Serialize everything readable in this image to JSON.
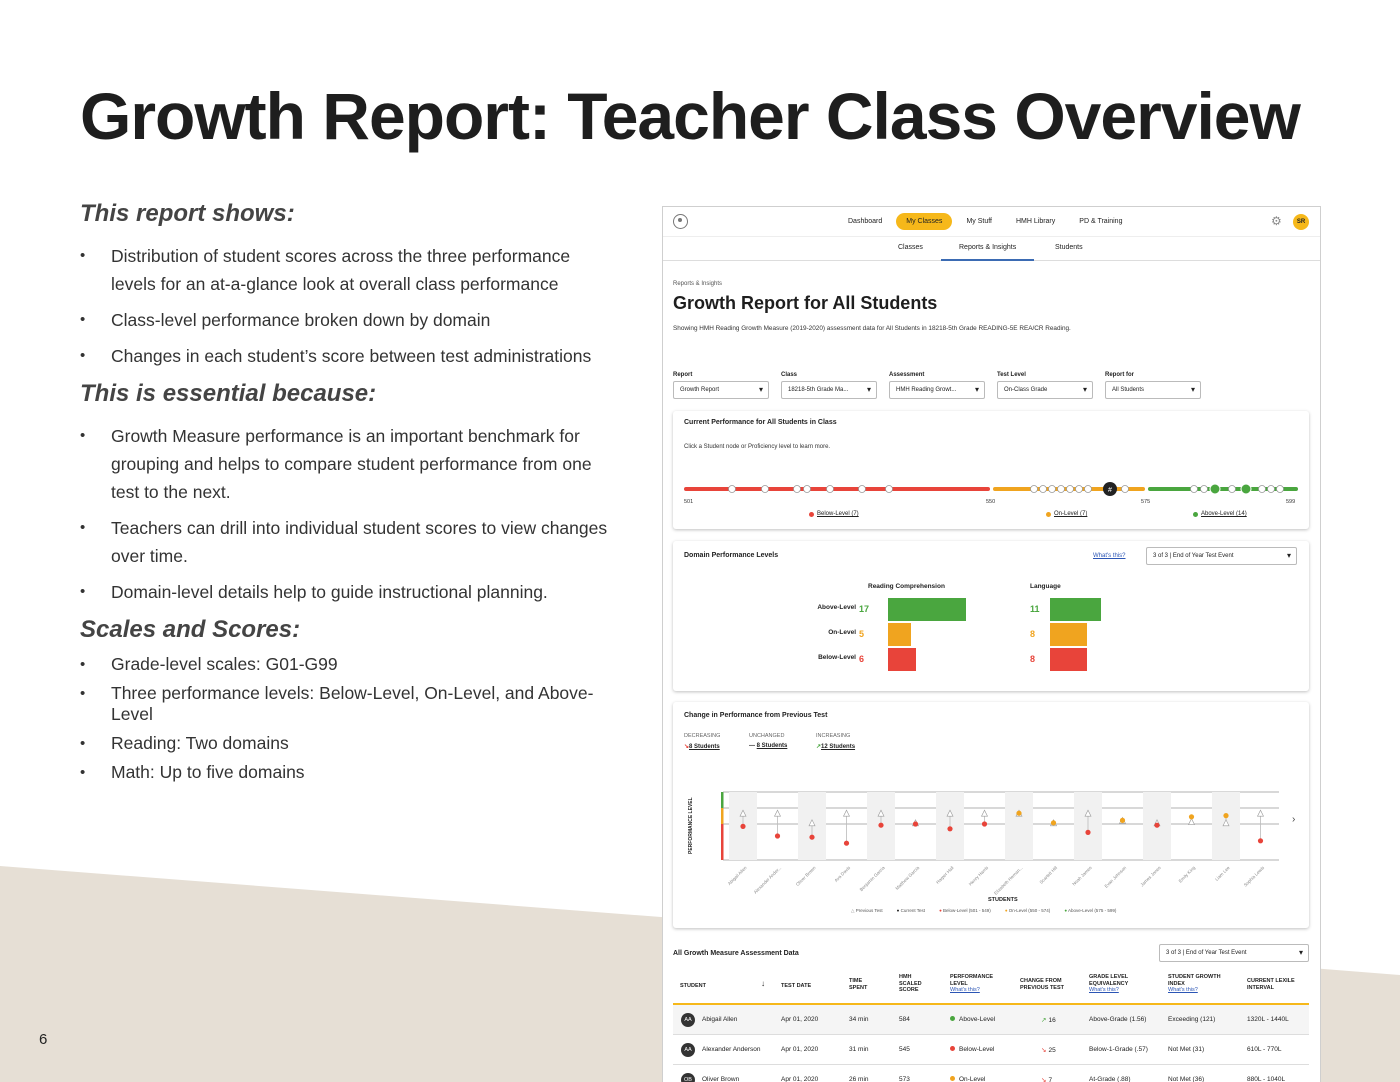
{
  "slide": {
    "title": "Growth Report: Teacher Class Overview",
    "page_number": "6",
    "sections": [
      {
        "heading": "This report shows:",
        "bullets": [
          "Distribution of student scores across the three performance levels for an at-a-glance look at overall class performance",
          "Class-level performance broken down by domain",
          "Changes in each student’s score between test administrations"
        ]
      },
      {
        "heading": "This is essential because:",
        "bullets": [
          "Growth Measure performance is an important benchmark for grouping and helps to compare student performance from one test to the next.",
          "Teachers can drill into individual student scores to view changes over time.",
          "Domain-level details help to guide instructional planning."
        ]
      },
      {
        "heading": "Scales and Scores:",
        "bullets": [
          "Grade-level scales: G01-G99",
          "Three performance levels: Below-Level, On-Level, and Above-Level",
          "Reading: Two domains",
          "Math: Up to five domains"
        ]
      }
    ]
  },
  "colors": {
    "accent": "#f6b81a",
    "below": "#e8443a",
    "on": "#f0a41f",
    "above": "#4aa63f",
    "link": "#2b55b5"
  },
  "app": {
    "nav": [
      "Dashboard",
      "My Classes",
      "My Stuff",
      "HMH Library",
      "PD & Training"
    ],
    "nav_active": "My Classes",
    "user_initials": "SR",
    "subnav": [
      "Classes",
      "Reports & Insights",
      "Students"
    ],
    "breadcrumb": "Reports & Insights",
    "title": "Growth Report for All Students",
    "description": "Showing HMH Reading Growth Measure (2019-2020) assessment data for All Students in 18218-5th Grade READING-5E REA/CR Reading.",
    "filters": [
      {
        "label": "Report",
        "value": "Growth Report"
      },
      {
        "label": "Class",
        "value": "18218-5th Grade Ma..."
      },
      {
        "label": "Assessment",
        "value": "HMH Reading Growt..."
      },
      {
        "label": "Test Level",
        "value": "On-Class Grade"
      },
      {
        "label": "Report for",
        "value": "All Students"
      }
    ],
    "current": {
      "title": "Current Performance for All Students in Class",
      "note": "Click a Student node or Proficiency level to learn more.",
      "scale": [
        "501",
        "550",
        "575",
        "599"
      ],
      "legend": [
        "Below-Level (7)",
        "On-Level (7)",
        "Above-Level (14)"
      ]
    },
    "domain": {
      "title": "Domain Performance Levels",
      "whats_this": "What's this?",
      "select": "3 of 3 | End of Year Test Event",
      "columns": [
        "Reading Comprehension",
        "Language"
      ],
      "rows": [
        "Above-Level",
        "On-Level",
        "Below-Level"
      ],
      "values": [
        [
          17,
          5,
          6
        ],
        [
          11,
          8,
          8
        ]
      ]
    },
    "change": {
      "title": "Change in Performance from Previous Test",
      "stats": [
        {
          "label": "DECREASING",
          "value": "8 Students"
        },
        {
          "label": "UNCHANGED",
          "value": "8 Students"
        },
        {
          "label": "INCREASING",
          "value": "12 Students"
        }
      ],
      "y_label": "PERFORMANCE LEVEL",
      "x_label": "STUDENTS",
      "students": [
        "Abigail Allen",
        "Alexander Ander...",
        "Oliver Brown",
        "Ava Davis",
        "Benjamin Garcia",
        "Matthew Garcia",
        "Harper Hall",
        "Henry Harris",
        "Elizabeth Hernan...",
        "Scarlett Hill",
        "Noah James",
        "Evan Johnson",
        "James Jones",
        "Emily King",
        "Liam Lee",
        "Sophia Lewis"
      ],
      "legend": [
        "Previous Test",
        "Current Test",
        "Below-Level (501 - 549)",
        "On-Level (550 - 574)",
        "Above-Level (575 - 599)"
      ]
    },
    "table": {
      "title": "All Growth Measure Assessment Data",
      "select": "3 of 3 | End of Year Test Event",
      "headers": [
        "STUDENT",
        "TEST DATE",
        "TIME SPENT",
        "HMH SCALED SCORE",
        "PERFORMANCE LEVEL",
        "CHANGE FROM PREVIOUS TEST",
        "GRADE LEVEL EQUIVALENCY",
        "STUDENT GROWTH INDEX",
        "CURRENT LEXILE INTERVAL"
      ],
      "whats_this": "What's this?",
      "rows": [
        {
          "initials": "AA",
          "name": "Abigail Allen",
          "date": "Apr 01, 2020",
          "time": "34 min",
          "score": "584",
          "level": "Above-Level",
          "change": "16",
          "dir": "up",
          "gle": "Above-Grade (1.56)",
          "sgi": "Exceeding (121)",
          "lexile": "1320L - 1440L"
        },
        {
          "initials": "AA",
          "name": "Alexander Anderson",
          "date": "Apr 01, 2020",
          "time": "31 min",
          "score": "545",
          "level": "Below-Level",
          "change": "25",
          "dir": "down",
          "gle": "Below-1-Grade (.57)",
          "sgi": "Not Met (31)",
          "lexile": "610L - 770L"
        },
        {
          "initials": "OB",
          "name": "Oliver Brown",
          "date": "Apr 01, 2020",
          "time": "26 min",
          "score": "573",
          "level": "On-Level",
          "change": "7",
          "dir": "down",
          "gle": "At-Grade (.88)",
          "sgi": "Not Met (36)",
          "lexile": "880L - 1040L"
        }
      ]
    }
  }
}
